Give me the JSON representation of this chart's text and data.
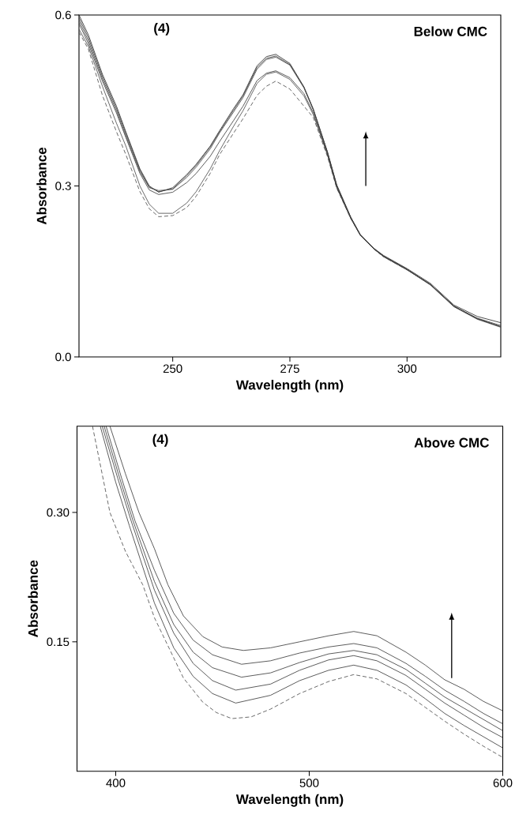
{
  "chart_data": [
    {
      "type": "line",
      "title": "Below CMC",
      "xlabel": "Wavelength (nm)",
      "ylabel": "Absorbance",
      "annotations": [
        "(4)"
      ],
      "xlim": [
        230,
        320
      ],
      "ylim": [
        0,
        0.6
      ],
      "xticks": [
        250,
        275,
        300
      ],
      "yticks": [
        {
          "value": 0,
          "label": "0.0"
        },
        0.3,
        0.6
      ],
      "x": [
        230,
        232,
        235,
        238,
        240,
        243,
        245,
        247,
        250,
        253,
        255,
        258,
        260,
        263,
        265,
        268,
        270,
        272,
        275,
        278,
        280,
        283,
        285,
        288,
        290,
        293,
        295,
        300,
        305,
        310,
        315,
        320
      ],
      "series": [
        {
          "color": "#222222",
          "line_style": "solid",
          "values": [
            0.6,
            0.565,
            0.496,
            0.44,
            0.395,
            0.33,
            0.3,
            0.289,
            0.297,
            0.32,
            0.338,
            0.37,
            0.397,
            0.436,
            0.46,
            0.511,
            0.527,
            0.531,
            0.515,
            0.474,
            0.435,
            0.36,
            0.302,
            0.245,
            0.215,
            0.19,
            0.178,
            0.155,
            0.129,
            0.091,
            0.071,
            0.06
          ]
        },
        {
          "color": "#333333",
          "line_style": "solid",
          "values": [
            0.595,
            0.56,
            0.492,
            0.436,
            0.392,
            0.328,
            0.298,
            0.29,
            0.295,
            0.318,
            0.336,
            0.368,
            0.395,
            0.433,
            0.458,
            0.508,
            0.524,
            0.528,
            0.513,
            0.473,
            0.434,
            0.36,
            0.301,
            0.245,
            0.215,
            0.19,
            0.177,
            0.154,
            0.127,
            0.089,
            0.068,
            0.055
          ]
        },
        {
          "color": "#444444",
          "line_style": "solid",
          "values": [
            0.59,
            0.555,
            0.488,
            0.432,
            0.388,
            0.325,
            0.297,
            0.292,
            0.294,
            0.315,
            0.333,
            0.365,
            0.393,
            0.43,
            0.455,
            0.505,
            0.522,
            0.526,
            0.512,
            0.472,
            0.433,
            0.359,
            0.3,
            0.244,
            0.214,
            0.189,
            0.176,
            0.153,
            0.126,
            0.088,
            0.066,
            0.052
          ]
        },
        {
          "color": "#333333",
          "line_style": "solid",
          "values": [
            0.585,
            0.55,
            0.484,
            0.428,
            0.385,
            0.322,
            0.293,
            0.285,
            0.289,
            0.306,
            0.322,
            0.352,
            0.378,
            0.415,
            0.44,
            0.485,
            0.498,
            0.502,
            0.49,
            0.462,
            0.428,
            0.356,
            0.298,
            0.243,
            0.214,
            0.189,
            0.176,
            0.153,
            0.127,
            0.089,
            0.067,
            0.053
          ]
        },
        {
          "color": "#444444",
          "line_style": "solid",
          "values": [
            0.575,
            0.545,
            0.475,
            0.41,
            0.37,
            0.3,
            0.268,
            0.252,
            0.252,
            0.27,
            0.29,
            0.33,
            0.362,
            0.405,
            0.432,
            0.48,
            0.496,
            0.5,
            0.487,
            0.458,
            0.425,
            0.355,
            0.297,
            0.243,
            0.214,
            0.189,
            0.176,
            0.153,
            0.127,
            0.089,
            0.067,
            0.053
          ]
        },
        {
          "color": "#444444",
          "line_style": "dashed",
          "values": [
            0.57,
            0.54,
            0.459,
            0.395,
            0.355,
            0.29,
            0.26,
            0.246,
            0.248,
            0.262,
            0.282,
            0.322,
            0.355,
            0.393,
            0.418,
            0.459,
            0.475,
            0.484,
            0.47,
            0.44,
            0.42,
            0.352,
            0.296,
            0.243,
            0.214,
            0.189,
            0.176,
            0.153,
            0.127,
            0.089,
            0.067,
            0.053
          ]
        }
      ]
    },
    {
      "type": "line",
      "title": "Above CMC",
      "xlabel": "Wavelength (nm)",
      "ylabel": "Absorbance",
      "annotations": [
        "(4)"
      ],
      "xlim": [
        380,
        600
      ],
      "ylim": [
        0,
        0.4
      ],
      "xticks": [
        400,
        500,
        600
      ],
      "yticks": [
        0.15,
        {
          "value": 0.3,
          "label": "0.30"
        }
      ],
      "series": [
        {
          "color": "#333333",
          "line_style": "solid",
          "x": [
            397,
            405,
            412,
            420,
            427,
            435,
            445,
            455,
            466,
            480,
            495,
            510,
            523,
            535,
            550,
            560,
            570,
            580,
            590,
            600
          ],
          "values": [
            0.4,
            0.345,
            0.3,
            0.258,
            0.216,
            0.18,
            0.156,
            0.144,
            0.14,
            0.143,
            0.15,
            0.157,
            0.162,
            0.157,
            0.138,
            0.123,
            0.106,
            0.095,
            0.081,
            0.07
          ]
        },
        {
          "color": "#333333",
          "line_style": "solid",
          "x": [
            395,
            403,
            410,
            420,
            430,
            440,
            450,
            465,
            480,
            495,
            510,
            523,
            535,
            550,
            560,
            570,
            580,
            590,
            600
          ],
          "values": [
            0.4,
            0.34,
            0.29,
            0.233,
            0.183,
            0.152,
            0.135,
            0.124,
            0.128,
            0.137,
            0.144,
            0.148,
            0.143,
            0.125,
            0.11,
            0.094,
            0.081,
            0.067,
            0.055
          ]
        },
        {
          "color": "#333333",
          "line_style": "solid",
          "x": [
            394,
            402,
            409,
            420,
            430,
            440,
            450,
            465,
            480,
            495,
            510,
            523,
            535,
            550,
            560,
            570,
            580,
            590,
            600
          ],
          "values": [
            0.4,
            0.34,
            0.29,
            0.22,
            0.17,
            0.138,
            0.12,
            0.109,
            0.114,
            0.126,
            0.136,
            0.14,
            0.135,
            0.118,
            0.102,
            0.086,
            0.073,
            0.06,
            0.047
          ]
        },
        {
          "color": "#333333",
          "line_style": "solid",
          "x": [
            393,
            401,
            408,
            420,
            430,
            440,
            450,
            462,
            480,
            495,
            510,
            523,
            535,
            550,
            560,
            570,
            580,
            590,
            600
          ],
          "values": [
            0.4,
            0.34,
            0.29,
            0.21,
            0.16,
            0.125,
            0.105,
            0.094,
            0.101,
            0.117,
            0.129,
            0.134,
            0.128,
            0.111,
            0.095,
            0.079,
            0.065,
            0.051,
            0.039
          ]
        },
        {
          "color": "#333333",
          "line_style": "solid",
          "x": [
            392,
            400,
            407,
            420,
            430,
            440,
            450,
            462,
            480,
            495,
            510,
            523,
            535,
            550,
            560,
            570,
            580,
            590,
            600
          ],
          "values": [
            0.4,
            0.335,
            0.285,
            0.195,
            0.143,
            0.11,
            0.09,
            0.079,
            0.088,
            0.105,
            0.117,
            0.123,
            0.117,
            0.1,
            0.084,
            0.067,
            0.053,
            0.04,
            0.027
          ]
        },
        {
          "color": "#444444",
          "line_style": "dashed",
          "x": [
            388,
            397,
            405,
            414,
            420,
            426,
            435,
            445,
            452,
            460,
            470,
            480,
            495,
            510,
            523,
            535,
            550,
            560,
            570,
            580,
            590,
            600
          ],
          "values": [
            0.4,
            0.3,
            0.255,
            0.216,
            0.178,
            0.15,
            0.108,
            0.08,
            0.068,
            0.061,
            0.063,
            0.072,
            0.09,
            0.104,
            0.112,
            0.107,
            0.09,
            0.074,
            0.058,
            0.043,
            0.029,
            0.016
          ]
        }
      ]
    }
  ]
}
